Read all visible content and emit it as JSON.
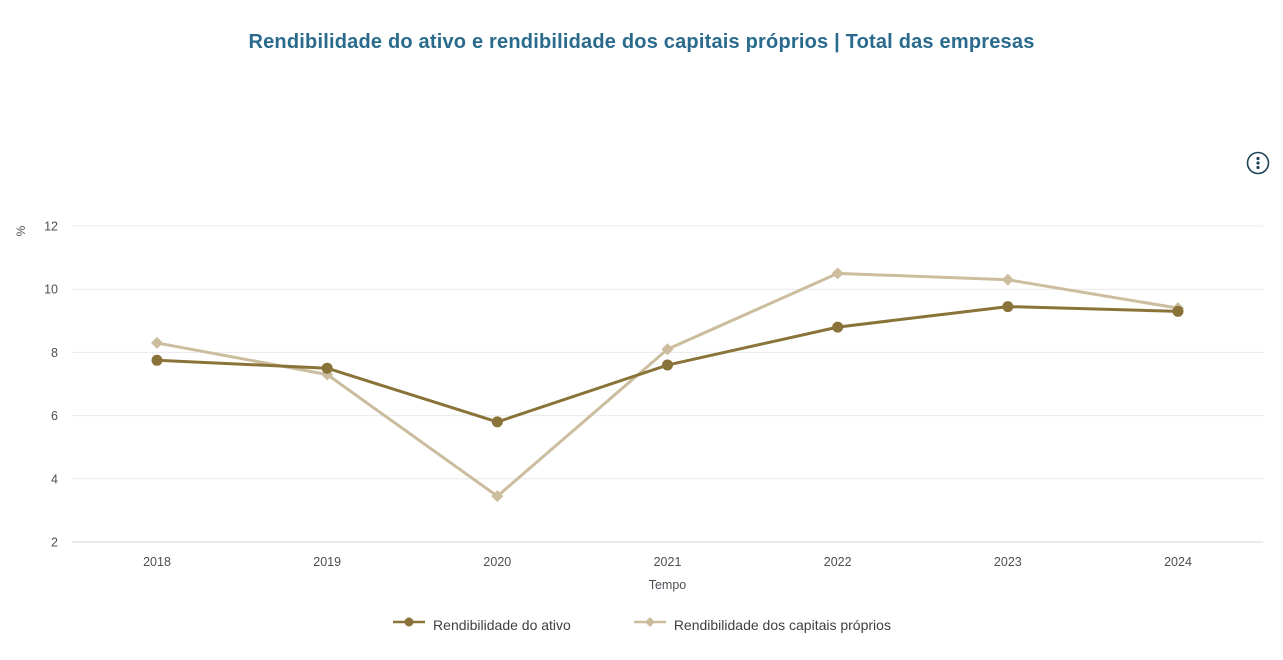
{
  "page": {
    "title": "Rendibilidade do ativo e rendibilidade dos capitais próprios | Total das empresas"
  },
  "toolbar": {
    "menu_icon": "kebab-menu-circle-icon"
  },
  "colors": {
    "title": "#2a6b8d",
    "axis_text": "#4e4e55",
    "grid_line": "#e9e9e9",
    "axis_line": "#d6d6e0",
    "icon": "#1d4456",
    "legend_text": "#3f3f3f"
  },
  "chart_data": {
    "type": "line",
    "title": "Rendibilidade do ativo e rendibilidade dos capitais próprios | Total das empresas",
    "xlabel": "Tempo",
    "ylabel": "%",
    "categories": [
      "2018",
      "2019",
      "2020",
      "2021",
      "2022",
      "2023",
      "2024"
    ],
    "ylim": [
      2,
      12
    ],
    "yticks": [
      2,
      4,
      6,
      8,
      10,
      12
    ],
    "grid": true,
    "legend_position": "bottom",
    "series": [
      {
        "name": "Rendibilidade do ativo",
        "color": "#8a7339",
        "marker": "circle",
        "values": [
          7.75,
          7.5,
          5.8,
          7.6,
          8.8,
          9.45,
          9.3
        ]
      },
      {
        "name": "Rendibilidade dos capitais próprios",
        "color": "#cbbd9d",
        "marker": "diamond",
        "values": [
          8.3,
          7.3,
          3.45,
          8.1,
          10.5,
          10.3,
          9.4
        ]
      }
    ]
  }
}
